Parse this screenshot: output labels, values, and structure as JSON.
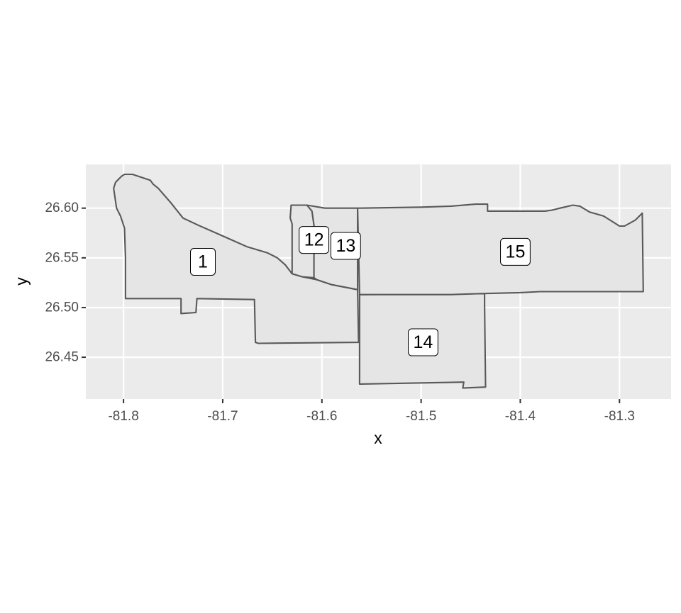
{
  "chart_data": {
    "type": "map",
    "xlabel": "x",
    "ylabel": "y",
    "xlim": [
      -81.838,
      -81.248
    ],
    "ylim": [
      26.408,
      26.644
    ],
    "x_ticks": [
      -81.8,
      -81.7,
      -81.6,
      -81.5,
      -81.4,
      -81.3
    ],
    "x_tick_labels": [
      "-81.8",
      "-81.7",
      "-81.6",
      "-81.5",
      "-81.4",
      "-81.3"
    ],
    "y_ticks": [
      26.45,
      26.5,
      26.55,
      26.6
    ],
    "y_tick_labels": [
      "26.45",
      "26.50",
      "26.55",
      "26.60"
    ],
    "grid": true,
    "colors": {
      "panel": "#ebebeb",
      "grid": "#ffffff",
      "fill": "#e5e5e5",
      "outline": "#595959"
    },
    "regions": [
      {
        "id": "1",
        "label": "1",
        "label_pos": [
          -81.72,
          26.546
        ],
        "coords": [
          [
            -81.791,
            26.634
          ],
          [
            -81.773,
            26.628
          ],
          [
            -81.77,
            26.624
          ],
          [
            -81.765,
            26.62
          ],
          [
            -81.752,
            26.605
          ],
          [
            -81.74,
            26.59
          ],
          [
            -81.725,
            26.583
          ],
          [
            -81.7,
            26.572
          ],
          [
            -81.675,
            26.561
          ],
          [
            -81.655,
            26.555
          ],
          [
            -81.645,
            26.55
          ],
          [
            -81.637,
            26.543
          ],
          [
            -81.63,
            26.534
          ],
          [
            -81.62,
            26.531
          ],
          [
            -81.605,
            26.528
          ],
          [
            -81.59,
            26.523
          ],
          [
            -81.564,
            26.518
          ],
          [
            -81.563,
            26.465
          ],
          [
            -81.664,
            26.464
          ],
          [
            -81.667,
            26.465
          ],
          [
            -81.668,
            26.508
          ],
          [
            -81.726,
            26.509
          ],
          [
            -81.727,
            26.495
          ],
          [
            -81.742,
            26.494
          ],
          [
            -81.742,
            26.509
          ],
          [
            -81.798,
            26.509
          ],
          [
            -81.798,
            26.55
          ],
          [
            -81.799,
            26.58
          ],
          [
            -81.803,
            26.592
          ],
          [
            -81.807,
            26.6
          ],
          [
            -81.81,
            26.62
          ],
          [
            -81.808,
            26.626
          ],
          [
            -81.802,
            26.632
          ],
          [
            -81.799,
            26.634
          ]
        ]
      },
      {
        "id": "12",
        "label": "12",
        "label_pos": [
          -81.608,
          26.568
        ],
        "coords": [
          [
            -81.631,
            26.603
          ],
          [
            -81.615,
            26.603
          ],
          [
            -81.61,
            26.597
          ],
          [
            -81.608,
            26.583
          ],
          [
            -81.608,
            26.53
          ],
          [
            -81.62,
            26.531
          ],
          [
            -81.63,
            26.534
          ],
          [
            -81.63,
            26.584
          ],
          [
            -81.632,
            26.59
          ]
        ]
      },
      {
        "id": "13",
        "label": "13",
        "label_pos": [
          -81.576,
          26.562
        ],
        "coords": [
          [
            -81.615,
            26.603
          ],
          [
            -81.597,
            26.6
          ],
          [
            -81.564,
            26.6
          ],
          [
            -81.564,
            26.518
          ],
          [
            -81.59,
            26.523
          ],
          [
            -81.605,
            26.528
          ],
          [
            -81.608,
            26.53
          ],
          [
            -81.608,
            26.583
          ],
          [
            -81.61,
            26.597
          ]
        ]
      },
      {
        "id": "14",
        "label": "14",
        "label_pos": [
          -81.498,
          26.465
        ],
        "coords": [
          [
            -81.562,
            26.513
          ],
          [
            -81.436,
            26.514
          ],
          [
            -81.436,
            26.503
          ],
          [
            -81.435,
            26.42
          ],
          [
            -81.458,
            26.419
          ],
          [
            -81.457,
            26.425
          ],
          [
            -81.562,
            26.423
          ]
        ]
      },
      {
        "id": "15",
        "label": "15",
        "label_pos": [
          -81.405,
          26.556
        ],
        "coords": [
          [
            -81.564,
            26.6
          ],
          [
            -81.5,
            26.601
          ],
          [
            -81.47,
            26.602
          ],
          [
            -81.445,
            26.604
          ],
          [
            -81.433,
            26.604
          ],
          [
            -81.433,
            26.597
          ],
          [
            -81.4,
            26.597
          ],
          [
            -81.375,
            26.597
          ],
          [
            -81.368,
            26.598
          ],
          [
            -81.36,
            26.6
          ],
          [
            -81.347,
            26.603
          ],
          [
            -81.34,
            26.602
          ],
          [
            -81.33,
            26.596
          ],
          [
            -81.316,
            26.592
          ],
          [
            -81.3,
            26.582
          ],
          [
            -81.295,
            26.582
          ],
          [
            -81.284,
            26.588
          ],
          [
            -81.277,
            26.595
          ],
          [
            -81.276,
            26.516
          ],
          [
            -81.38,
            26.516
          ],
          [
            -81.4,
            26.515
          ],
          [
            -81.44,
            26.514
          ],
          [
            -81.47,
            26.513
          ],
          [
            -81.5,
            26.513
          ],
          [
            -81.562,
            26.513
          ]
        ]
      }
    ]
  }
}
